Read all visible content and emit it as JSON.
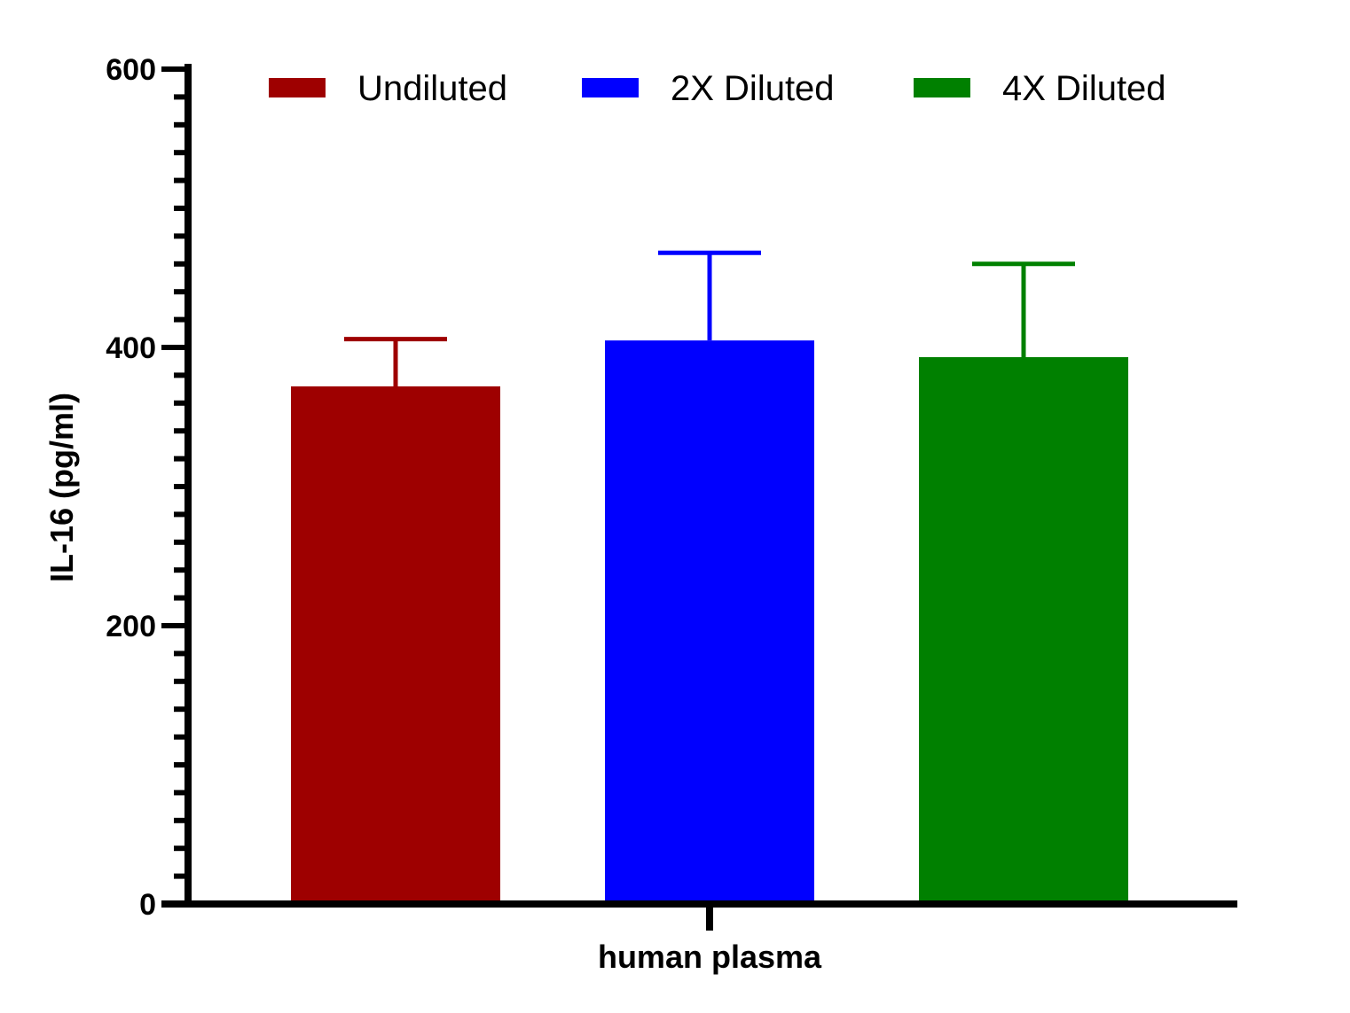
{
  "chart_data": {
    "type": "bar",
    "categories": [
      "human plasma"
    ],
    "xlabel": "human plasma",
    "ylabel": "IL-16 (pg/ml)",
    "ylim": [
      0,
      600
    ],
    "yticks": [
      0,
      200,
      400,
      600
    ],
    "grid": false,
    "legend_position": "top",
    "series": [
      {
        "name": "Undiluted",
        "values": [
          372
        ],
        "error": [
          34
        ],
        "color": "#9e0000"
      },
      {
        "name": "2X Diluted",
        "values": [
          405
        ],
        "error": [
          63
        ],
        "color": "#0000ff"
      },
      {
        "name": "4X Diluted",
        "values": [
          393
        ],
        "error": [
          67
        ],
        "color": "#008000"
      }
    ]
  }
}
